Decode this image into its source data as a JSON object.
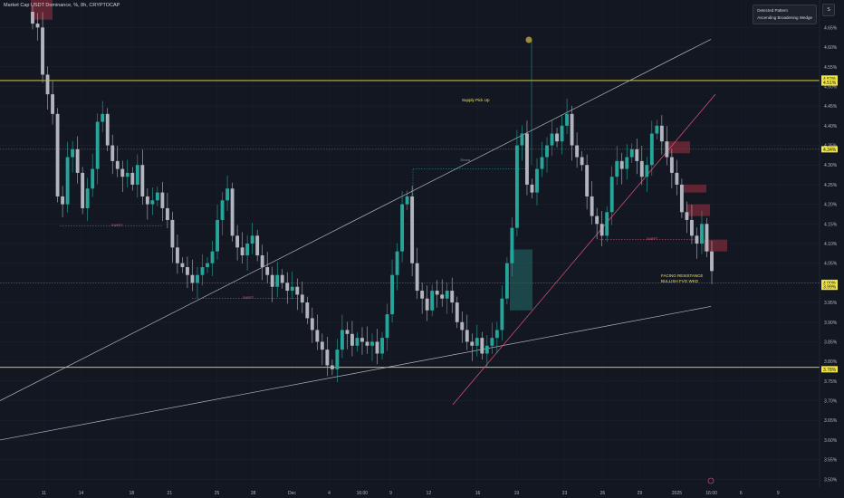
{
  "header": {
    "title": "Market Cap USDT Dominance, %, 8h, CRYPTOCAP"
  },
  "badge": {
    "line1": "Detected Pattern",
    "line2": "Ascending Broadening Wedge"
  },
  "side_button": "S",
  "annotations": {
    "supply": "Supply Pick Up",
    "facing_line1": "FACING RESISTANCE",
    "facing_line2": "BULLISH FVG WKD",
    "swept1": "SWEPT",
    "swept2": "SWEPT",
    "swept3": "SWEPT",
    "timeframe": "30mins"
  },
  "colors": {
    "background": "#131722",
    "up": "#26a69a",
    "down": "#b2b5be",
    "level": "#f0e442",
    "trend_pink": "#e0567a",
    "trend_white": "#b2b5be",
    "supply_zone": "#7b2a3a"
  },
  "chart_data": {
    "type": "candlestick",
    "title": "Market Cap USDT Dominance, %, 8h, CRYPTOCAP",
    "y_unit": "%",
    "ylim": [
      3.48,
      4.72
    ],
    "y_ticks": [
      "4.65%",
      "4.60%",
      "4.55%",
      "4.50%",
      "4.45%",
      "4.40%",
      "4.35%",
      "4.30%",
      "4.25%",
      "4.20%",
      "4.15%",
      "4.10%",
      "4.05%",
      "4.00%",
      "3.95%",
      "3.90%",
      "3.85%",
      "3.80%",
      "3.75%",
      "3.70%",
      "3.65%",
      "3.60%",
      "3.55%",
      "3.50%"
    ],
    "x_ticks": [
      "11",
      "14",
      "18",
      "21",
      "25",
      "28",
      "Dec",
      "4",
      "16:00",
      "9",
      "12",
      "16",
      "19",
      "23",
      "26",
      "29",
      "2025",
      "16:00",
      "6",
      "9"
    ],
    "x_tick_fractions": [
      0.052,
      0.096,
      0.156,
      0.201,
      0.257,
      0.3,
      0.346,
      0.39,
      0.429,
      0.463,
      0.508,
      0.566,
      0.612,
      0.669,
      0.714,
      0.758,
      0.802,
      0.843,
      0.878,
      0.922
    ],
    "price_labels": [
      "4.52%",
      "4.51%",
      "4.34%",
      "4.00%",
      "3.99%",
      "3.78%"
    ],
    "levels": [
      4.515,
      4.34,
      4.0,
      3.785
    ],
    "candles_close": [
      4.66,
      4.65,
      4.53,
      4.48,
      4.43,
      4.22,
      4.2,
      4.32,
      4.34,
      4.28,
      4.19,
      4.24,
      4.29,
      4.41,
      4.43,
      4.35,
      4.31,
      4.29,
      4.27,
      4.28,
      4.25,
      4.3,
      4.22,
      4.2,
      4.21,
      4.23,
      4.19,
      4.16,
      4.09,
      4.05,
      4.04,
      4.02,
      4.0,
      4.02,
      4.04,
      4.05,
      4.08,
      4.16,
      4.21,
      4.24,
      4.12,
      4.09,
      4.07,
      4.1,
      4.12,
      4.07,
      4.04,
      4.02,
      3.99,
      4.02,
      4.0,
      3.98,
      3.99,
      3.97,
      3.95,
      3.91,
      3.88,
      3.85,
      3.83,
      3.79,
      3.78,
      3.83,
      3.88,
      3.87,
      3.84,
      3.86,
      3.85,
      3.84,
      3.85,
      3.82,
      3.86,
      3.92,
      4.02,
      4.08,
      4.2,
      4.22,
      4.05,
      3.98,
      3.96,
      3.93,
      3.98,
      3.97,
      3.96,
      3.98,
      3.95,
      3.9,
      3.88,
      3.85,
      3.84,
      3.86,
      3.82,
      3.84,
      3.86,
      3.88,
      3.96,
      4.05,
      4.14,
      4.35,
      4.38,
      4.25,
      4.23,
      4.29,
      4.32,
      4.35,
      4.38,
      4.36,
      4.4,
      4.43,
      4.35,
      4.32,
      4.3,
      4.22,
      4.17,
      4.15,
      4.12,
      4.18,
      4.27,
      4.31,
      4.29,
      4.32,
      4.34,
      4.31,
      4.27,
      4.3,
      4.38,
      4.4,
      4.36,
      4.32,
      4.28,
      4.25,
      4.18,
      4.16,
      4.12,
      4.1,
      4.15,
      4.08,
      4.03
    ],
    "supply_zones": [
      [
        4.23,
        4.25
      ],
      [
        4.17,
        4.2
      ],
      [
        4.08,
        4.11
      ],
      [
        4.33,
        4.36
      ],
      [
        4.67,
        4.72
      ]
    ]
  }
}
